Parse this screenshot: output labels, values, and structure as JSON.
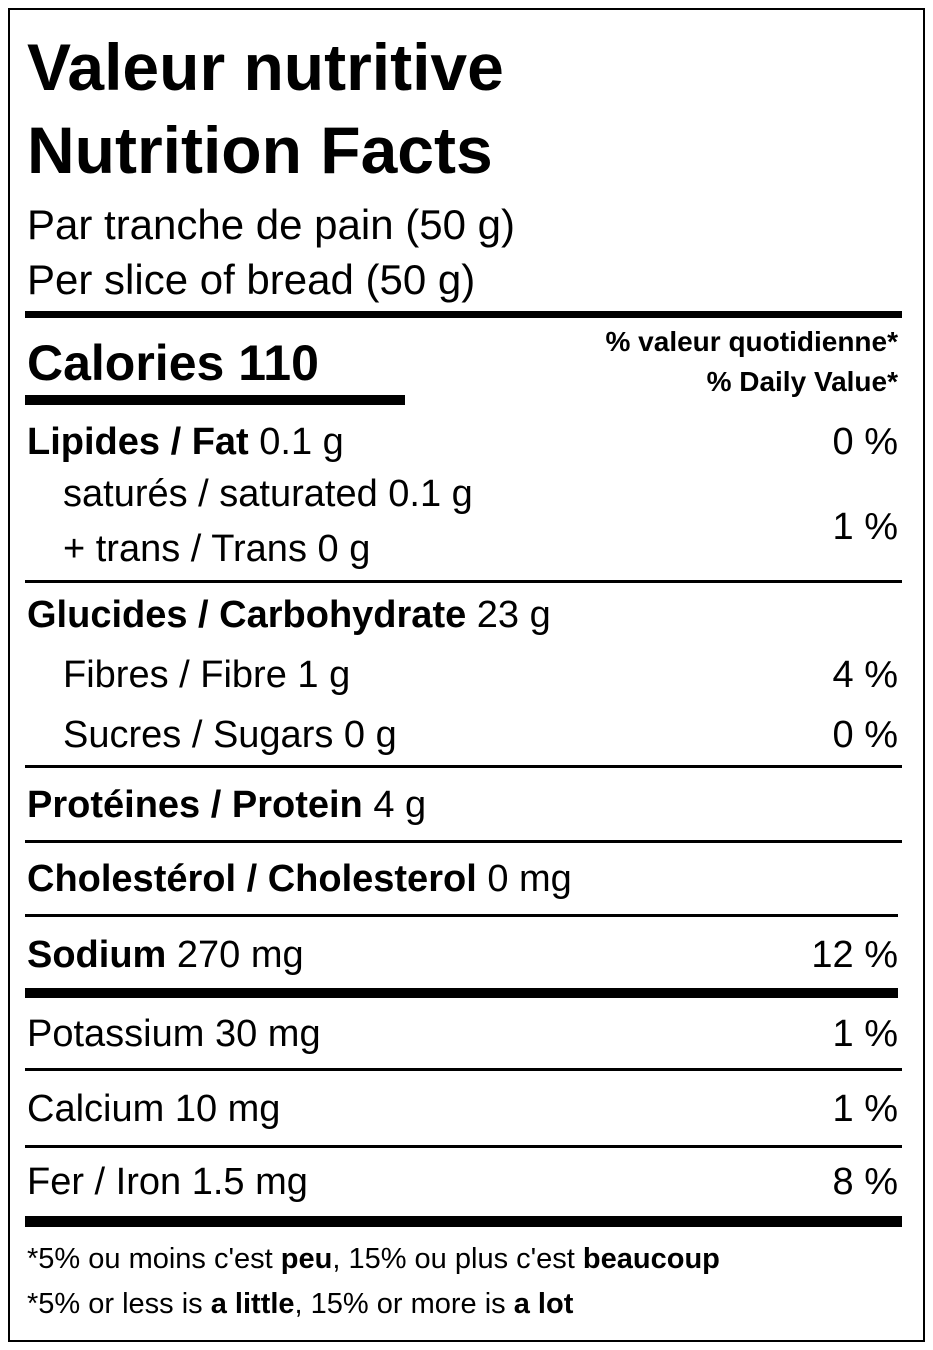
{
  "header": {
    "title_fr": "Valeur nutritive",
    "title_en": "Nutrition Facts",
    "serving_fr": "Par tranche de pain (50 g)",
    "serving_en": "Per slice of bread (50 g)"
  },
  "calories": "Calories 110",
  "dv_header": {
    "fr": "% valeur quotidienne*",
    "en": "% Daily Value*"
  },
  "fat": {
    "name": "Lipides / Fat",
    "amount": "0.1 g",
    "dv": "0 %"
  },
  "saturated": {
    "name": "saturés / saturated",
    "amount": "0.1 g"
  },
  "trans": {
    "name": "+ trans / Trans",
    "amount": "0 g"
  },
  "saturated_trans_dv": "1 %",
  "carbohydrate": {
    "name": "Glucides / Carbohydrate",
    "amount": "23 g"
  },
  "fibre": {
    "name": "Fibres / Fibre",
    "amount": "1 g",
    "dv": "4 %"
  },
  "sugars": {
    "name": "Sucres / Sugars",
    "amount": "0 g",
    "dv": "0 %"
  },
  "protein": {
    "name": "Protéines / Protein",
    "amount": "4 g"
  },
  "cholesterol": {
    "name": "Cholestérol / Cholesterol",
    "amount": "0 mg"
  },
  "sodium": {
    "name": "Sodium",
    "amount": "270 mg",
    "dv": "12 %"
  },
  "potassium": {
    "name": "Potassium",
    "amount": "30 mg",
    "dv": "1 %"
  },
  "calcium": {
    "name": "Calcium",
    "amount": "10 mg",
    "dv": "1 %"
  },
  "iron": {
    "name": "Fer / Iron",
    "amount": "1.5 mg",
    "dv": "8 %"
  },
  "footnote_fr": {
    "a": "*5% ou moins c'est",
    "b": "peu",
    "c": ", 15% ou plus c'est",
    "d": "beaucoup"
  },
  "footnote_en": {
    "a": "*5% or less is",
    "b": "a little",
    "c": ", 15% or more is",
    "d": "a lot"
  }
}
